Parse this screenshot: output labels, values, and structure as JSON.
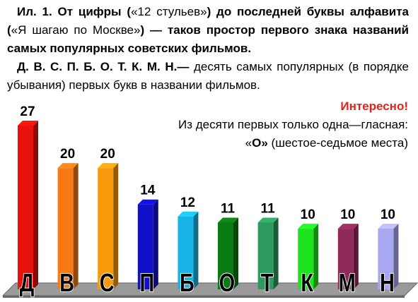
{
  "chart_data": {
    "type": "bar3d",
    "title_parts": [
      "Ил. 1. От цифры (",
      "«12 стульев»",
      ") до последней буквы алфавита (",
      "«Я шагаю по Москве»",
      ") — таков простор первого знака названий самых популярных советских фильмов."
    ],
    "subtitle_parts": [
      "Д. В. С. П. Б. О. Т. К. М. Н.—",
      " десять самых популярных (в порядке убывания) первых букв в названии фильмов."
    ],
    "note_heading": "Интересно!",
    "note_line": "Из десяти первых только одна—гласная:",
    "note_parts": [
      "«",
      "О»",
      " (шестое-седьмое места)"
    ],
    "categories": [
      "Д",
      "В",
      "С",
      "П",
      "Б",
      "О",
      "Т",
      "К",
      "М",
      "Н"
    ],
    "values": [
      27,
      20,
      20,
      14,
      12,
      11,
      11,
      10,
      10,
      10
    ],
    "colors": [
      "#e8120c",
      "#f77a12",
      "#f99a0c",
      "#1010c8",
      "#19b4e6",
      "#0a7a12",
      "#2e9a60",
      "#1ee41e",
      "#902a5a",
      "#a8a8f0"
    ]
  }
}
